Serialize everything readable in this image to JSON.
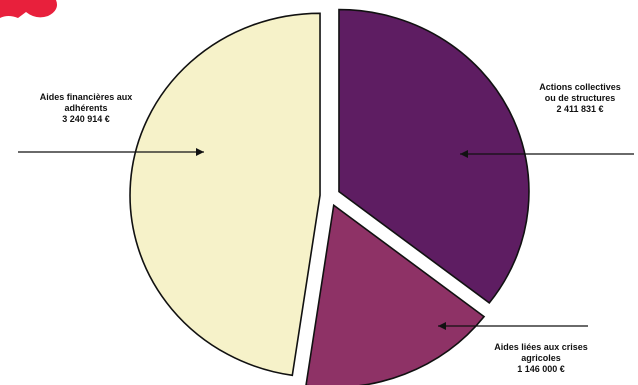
{
  "chart_data": {
    "type": "pie",
    "title": "",
    "slices": [
      {
        "label_lines": [
          "Aides financières aux",
          "adhérents"
        ],
        "value_label": "3 240 914 €",
        "value": 3240914,
        "color": "#f6f2c9"
      },
      {
        "label_lines": [
          "Actions collectives",
          "ou de structures"
        ],
        "value_label": "2 411 831 €",
        "value": 2411831,
        "color": "#5e1d62"
      },
      {
        "label_lines": [
          "Aides liées aux crises",
          "agricoles"
        ],
        "value_label": "1 146 000 €",
        "value": 1146000,
        "color": "#8e3266"
      }
    ],
    "legend": "none",
    "exploded": true
  },
  "decor": {
    "corner_color": "#e8203c"
  }
}
